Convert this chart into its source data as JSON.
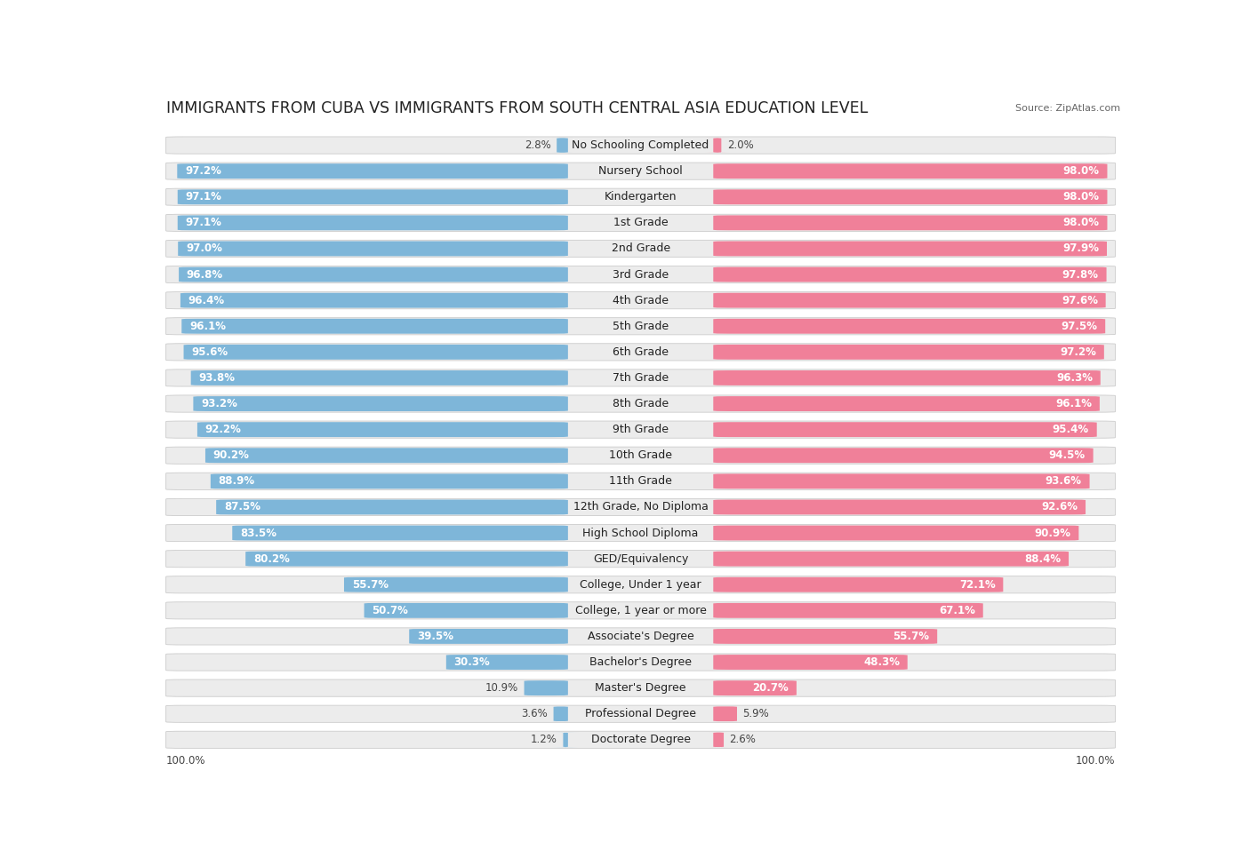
{
  "title": "IMMIGRANTS FROM CUBA VS IMMIGRANTS FROM SOUTH CENTRAL ASIA EDUCATION LEVEL",
  "source": "Source: ZipAtlas.com",
  "categories": [
    "No Schooling Completed",
    "Nursery School",
    "Kindergarten",
    "1st Grade",
    "2nd Grade",
    "3rd Grade",
    "4th Grade",
    "5th Grade",
    "6th Grade",
    "7th Grade",
    "8th Grade",
    "9th Grade",
    "10th Grade",
    "11th Grade",
    "12th Grade, No Diploma",
    "High School Diploma",
    "GED/Equivalency",
    "College, Under 1 year",
    "College, 1 year or more",
    "Associate's Degree",
    "Bachelor's Degree",
    "Master's Degree",
    "Professional Degree",
    "Doctorate Degree"
  ],
  "cuba_values": [
    2.8,
    97.2,
    97.1,
    97.1,
    97.0,
    96.8,
    96.4,
    96.1,
    95.6,
    93.8,
    93.2,
    92.2,
    90.2,
    88.9,
    87.5,
    83.5,
    80.2,
    55.7,
    50.7,
    39.5,
    30.3,
    10.9,
    3.6,
    1.2
  ],
  "asia_values": [
    2.0,
    98.0,
    98.0,
    98.0,
    97.9,
    97.8,
    97.6,
    97.5,
    97.2,
    96.3,
    96.1,
    95.4,
    94.5,
    93.6,
    92.6,
    90.9,
    88.4,
    72.1,
    67.1,
    55.7,
    48.3,
    20.7,
    5.9,
    2.6
  ],
  "cuba_color": "#7EB6D9",
  "asia_color": "#F08099",
  "bar_bg_color": "#ececec",
  "title_fontsize": 12.5,
  "label_fontsize": 9.0,
  "value_fontsize": 8.5,
  "legend_fontsize": 9.5
}
